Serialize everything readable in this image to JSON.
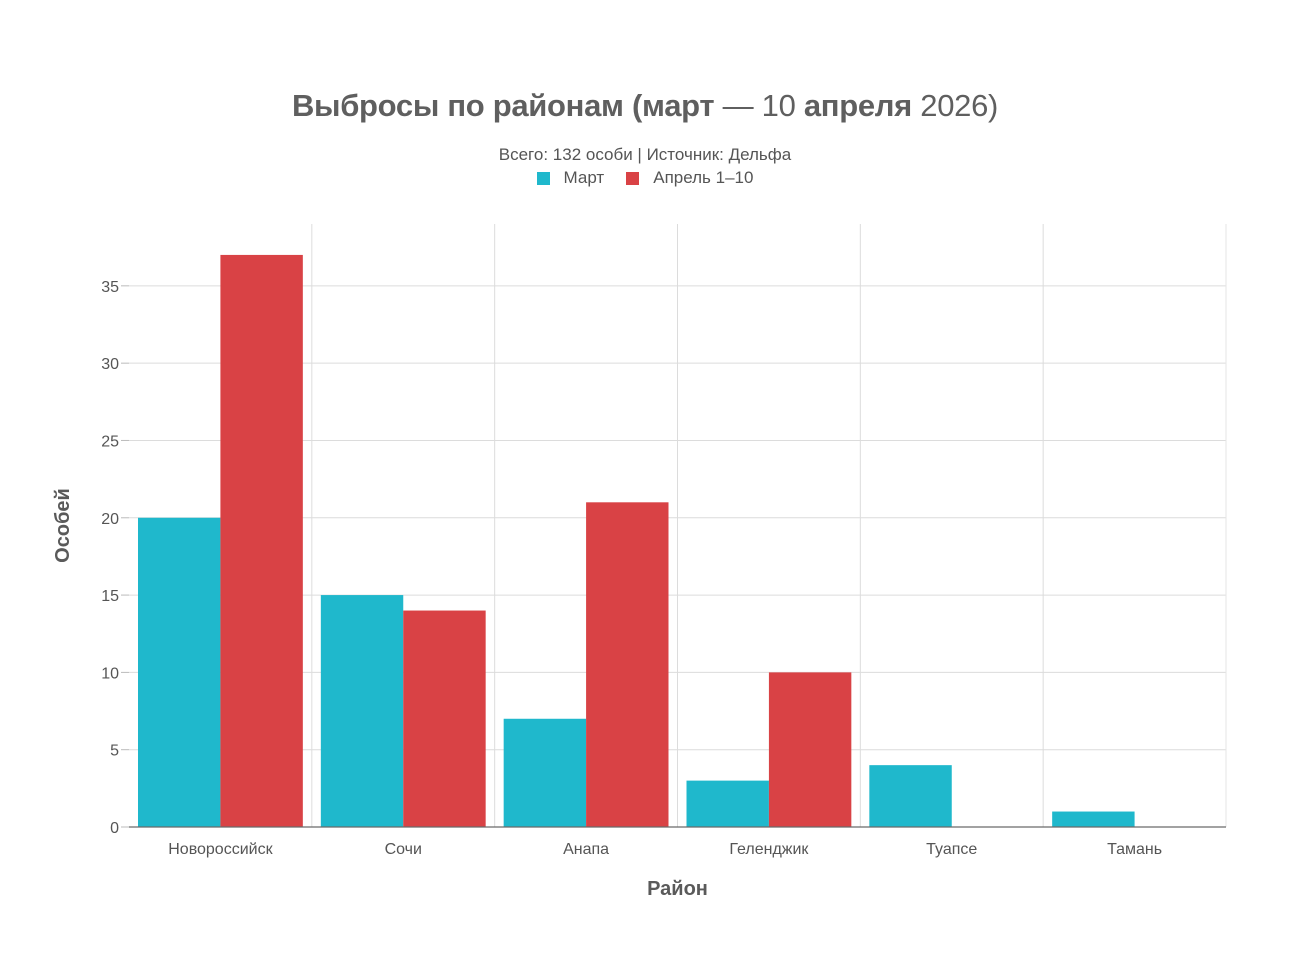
{
  "chart_data": {
    "type": "bar",
    "title_bold_1": "Выбросы по районам (март",
    "title_light_1": " — 10 ",
    "title_bold_2": "апреля",
    "title_light_2": " 2026)",
    "subtitle": "Всего: 132 особи | Источник: Дельфа",
    "xlabel": "Район",
    "ylabel": "Особей",
    "categories": [
      "Новороссийск",
      "Сочи",
      "Анапа",
      "Геленджик",
      "Туапсе",
      "Тамань"
    ],
    "series": [
      {
        "name": "Март",
        "color": "#1fb8cc",
        "values": [
          20,
          15,
          7,
          3,
          4,
          1
        ]
      },
      {
        "name": "Апрель 1–10",
        "color": "#d94245",
        "values": [
          37,
          14,
          21,
          10,
          0,
          0
        ]
      }
    ],
    "ylim": [
      0,
      39
    ],
    "yticks": [
      0,
      5,
      10,
      15,
      20,
      25,
      30,
      35
    ],
    "grid": true,
    "legend_position": "top-center"
  }
}
